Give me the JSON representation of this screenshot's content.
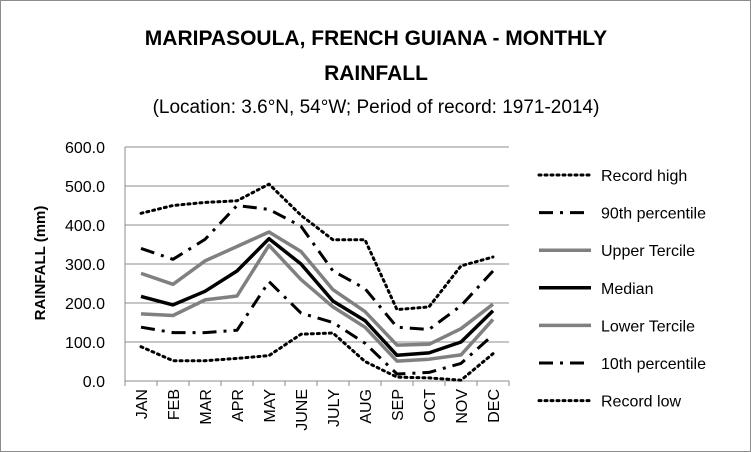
{
  "chart_data": {
    "type": "line",
    "title_line1": "MARIPASOULA, FRENCH GUIANA - MONTHLY",
    "title_line2": "RAINFALL",
    "subtitle": "(Location: 3.6°N, 54°W; Period of record: 1971-2014)",
    "ylabel": "RAINFALL (mm)",
    "xlabel": "",
    "ylim": [
      0,
      600
    ],
    "yticks": [
      "0.0",
      "100.0",
      "200.0",
      "300.0",
      "400.0",
      "500.0",
      "600.0"
    ],
    "categories": [
      "JAN",
      "FEB",
      "MAR",
      "APR",
      "MAY",
      "JUNE",
      "JULY",
      "AUG",
      "SEP",
      "OCT",
      "NOV",
      "DEC"
    ],
    "grid": "horizontal",
    "legend_position": "right",
    "series": [
      {
        "name": "Record high",
        "style": "dotted",
        "color": "#000000",
        "values": [
          430,
          450,
          458,
          462,
          505,
          425,
          362,
          362,
          183,
          190,
          295,
          318
        ]
      },
      {
        "name": "90th percentile",
        "style": "dashdot",
        "color": "#000000",
        "values": [
          340,
          312,
          363,
          450,
          440,
          397,
          282,
          237,
          138,
          132,
          193,
          282
        ]
      },
      {
        "name": "Upper Tercile",
        "style": "solid",
        "color": "#808080",
        "values": [
          276,
          248,
          308,
          345,
          382,
          332,
          234,
          178,
          92,
          94,
          134,
          197
        ]
      },
      {
        "name": "Median",
        "style": "solid",
        "color": "#000000",
        "values": [
          217,
          195,
          230,
          282,
          365,
          300,
          205,
          155,
          66,
          72,
          100,
          180
        ]
      },
      {
        "name": "Lower Tercile",
        "style": "solid",
        "color": "#808080",
        "values": [
          172,
          168,
          208,
          218,
          348,
          260,
          190,
          138,
          51,
          56,
          67,
          158
        ]
      },
      {
        "name": "10th percentile",
        "style": "dashdot",
        "color": "#000000",
        "values": [
          138,
          124,
          124,
          130,
          255,
          174,
          150,
          97,
          18,
          22,
          45,
          118
        ]
      },
      {
        "name": "Record low",
        "style": "dotted",
        "color": "#000000",
        "values": [
          88,
          52,
          52,
          58,
          65,
          120,
          123,
          50,
          10,
          8,
          2,
          70
        ]
      }
    ]
  }
}
